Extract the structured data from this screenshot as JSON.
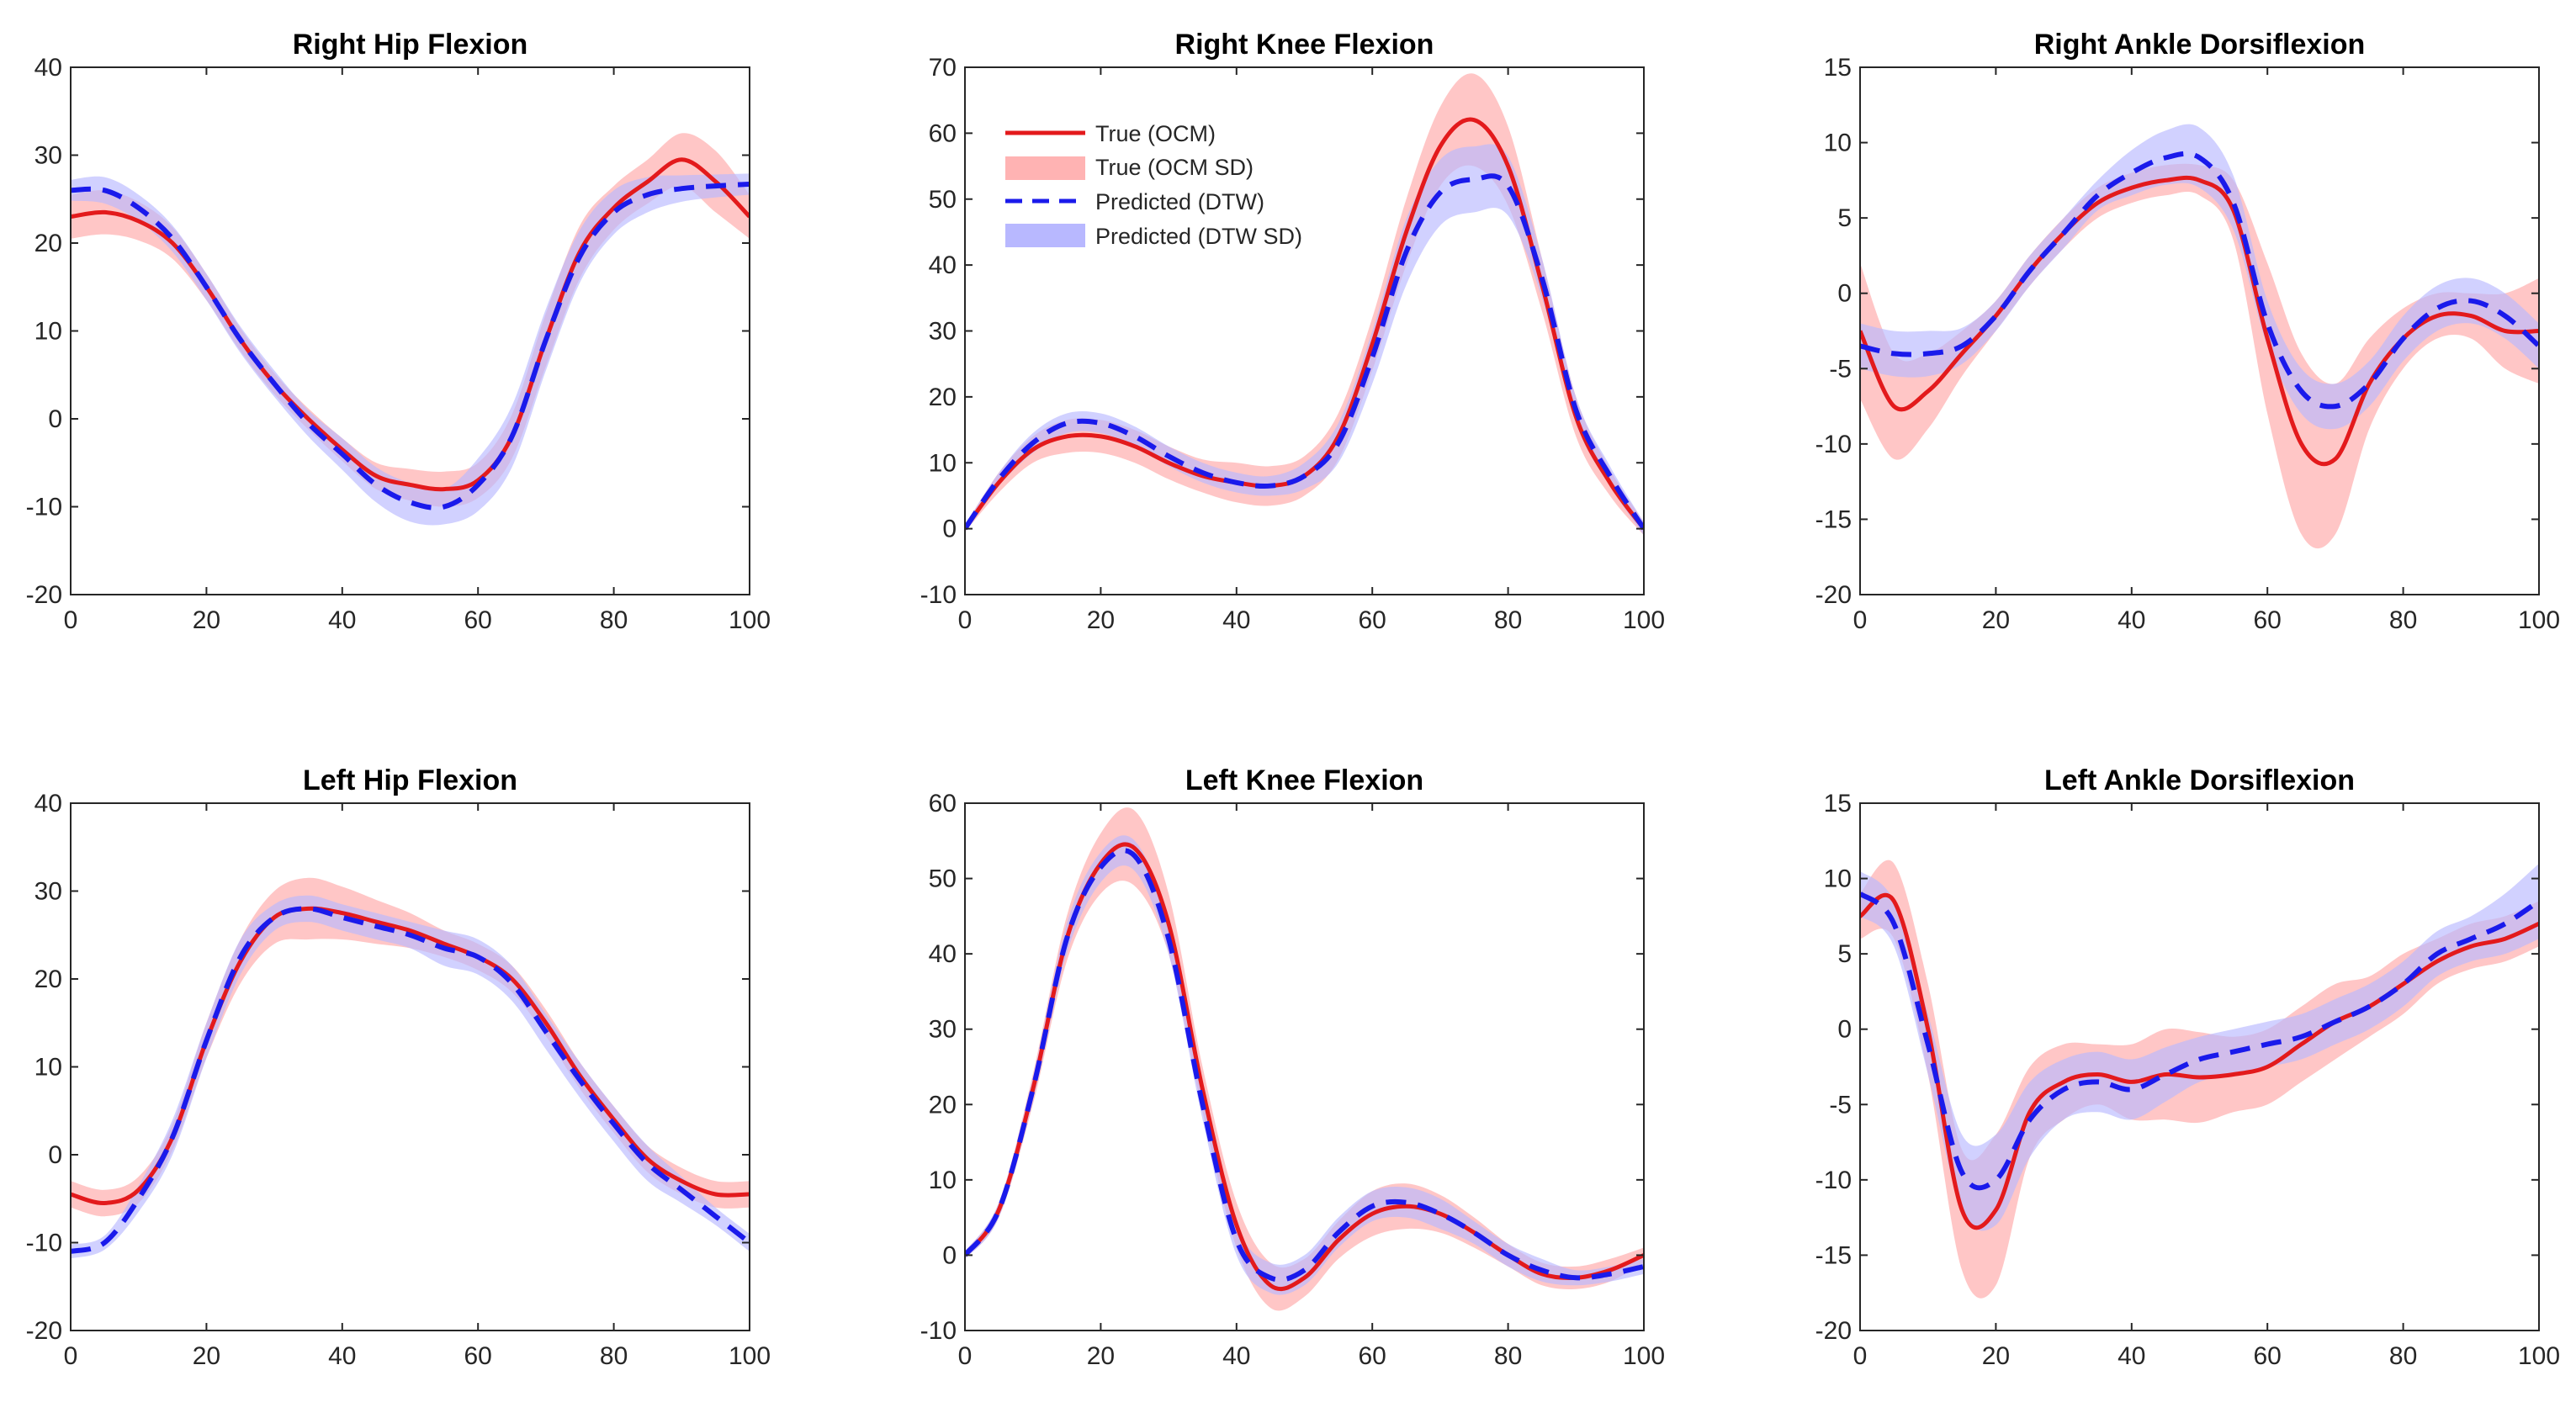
{
  "legend": {
    "entries": [
      {
        "label": "True (OCM)",
        "style": "solid-line",
        "color": "#e31a1c"
      },
      {
        "label": "True (OCM SD)",
        "style": "band",
        "color": "#ffb3b3"
      },
      {
        "label": "Predicted (DTW)",
        "style": "dashed-line",
        "color": "#1a1aeb"
      },
      {
        "label": "Predicted (DTW SD)",
        "style": "band",
        "color": "#b8b8ff"
      }
    ]
  },
  "chart_data": [
    {
      "type": "line",
      "title": "Right Hip Flexion",
      "xlabel": "",
      "ylabel": "",
      "xlim": [
        0,
        100
      ],
      "ylim": [
        -20,
        40
      ],
      "xticks": [
        0,
        20,
        40,
        60,
        80,
        100
      ],
      "yticks": [
        -20,
        -10,
        0,
        10,
        20,
        30,
        40
      ],
      "x": [
        0,
        5,
        10,
        15,
        20,
        25,
        30,
        35,
        40,
        45,
        50,
        55,
        60,
        65,
        70,
        75,
        80,
        85,
        90,
        95,
        100
      ],
      "series": [
        {
          "name": "True (OCM)",
          "values": [
            23,
            23.5,
            22.5,
            20,
            15,
            9,
            4,
            0,
            -3.5,
            -6.5,
            -7.5,
            -8,
            -7,
            -2,
            9,
            19,
            24,
            27,
            29.5,
            27,
            23
          ],
          "sd": [
            2.5,
            2.5,
            2.2,
            1.8,
            1.5,
            1.3,
            1.2,
            1.2,
            1.3,
            1.5,
            1.8,
            2.0,
            2.0,
            2.5,
            3,
            3,
            2.5,
            2.5,
            3,
            3.5,
            2.5
          ]
        },
        {
          "name": "Predicted (DTW)",
          "values": [
            26,
            26,
            24,
            20.5,
            15,
            9,
            4,
            -0.5,
            -4,
            -7.5,
            -9.5,
            -10,
            -7.5,
            -2,
            9,
            18.5,
            23.5,
            25.5,
            26.2,
            26.5,
            26.7
          ],
          "sd": [
            1.2,
            1.5,
            1.5,
            1.5,
            1.5,
            1.5,
            1.5,
            1.5,
            1.8,
            2.0,
            2.2,
            2.0,
            3,
            3.5,
            3.5,
            3,
            2.5,
            2,
            1.5,
            1.3,
            1.2
          ]
        }
      ]
    },
    {
      "type": "line",
      "title": "Right Knee Flexion",
      "xlabel": "",
      "ylabel": "",
      "xlim": [
        0,
        100
      ],
      "ylim": [
        -10,
        70
      ],
      "xticks": [
        0,
        20,
        40,
        60,
        80,
        100
      ],
      "yticks": [
        -10,
        0,
        10,
        20,
        30,
        40,
        50,
        60,
        70
      ],
      "x": [
        0,
        5,
        10,
        15,
        20,
        25,
        30,
        35,
        40,
        45,
        50,
        55,
        60,
        65,
        70,
        75,
        80,
        85,
        90,
        95,
        100
      ],
      "series": [
        {
          "name": "True (OCM)",
          "values": [
            0,
            7,
            12,
            14,
            14,
            12.5,
            10,
            8,
            7,
            6.5,
            8,
            14,
            28,
            45,
            58,
            62,
            55,
            37,
            17,
            7,
            0
          ],
          "sd": [
            0.5,
            1.5,
            2,
            2.5,
            2.5,
            2.5,
            2.5,
            2.5,
            3,
            3,
            3,
            3.5,
            4,
            5,
            6,
            7,
            6,
            4,
            3,
            2,
            1
          ]
        },
        {
          "name": "Predicted (DTW)",
          "values": [
            0,
            7.5,
            13,
            16,
            16,
            14,
            11,
            8.5,
            7,
            6.5,
            8,
            13,
            26,
            42,
            51,
            53,
            52,
            38,
            18,
            8,
            0
          ],
          "sd": [
            0.5,
            1,
            1.5,
            1.5,
            1.5,
            1.5,
            1.5,
            1.5,
            1.5,
            1.5,
            2,
            3,
            4,
            5,
            5,
            5,
            4.5,
            3,
            2,
            1.5,
            1
          ]
        }
      ]
    },
    {
      "type": "line",
      "title": "Right Ankle Dorsiflexion",
      "xlabel": "",
      "ylabel": "",
      "xlim": [
        0,
        100
      ],
      "ylim": [
        -20,
        15
      ],
      "xticks": [
        0,
        20,
        40,
        60,
        80,
        100
      ],
      "yticks": [
        -20,
        -15,
        -10,
        -5,
        0,
        5,
        10,
        15
      ],
      "x": [
        0,
        5,
        10,
        15,
        20,
        25,
        30,
        35,
        40,
        45,
        50,
        55,
        60,
        65,
        70,
        75,
        80,
        85,
        90,
        95,
        100
      ],
      "series": [
        {
          "name": "True (OCM)",
          "values": [
            -2.5,
            -7.5,
            -6.5,
            -4,
            -1.5,
            1.5,
            4,
            6,
            7,
            7.5,
            7.5,
            5.5,
            -3,
            -10,
            -11,
            -6,
            -3,
            -1.5,
            -1.5,
            -2.5,
            -2.5
          ],
          "sd": [
            4.5,
            3.5,
            2.5,
            1.5,
            1,
            1,
            1,
            1,
            1,
            1,
            1,
            2,
            5,
            6,
            5,
            3,
            2,
            1.5,
            1.5,
            2.5,
            3.5
          ]
        },
        {
          "name": "Predicted (DTW)",
          "values": [
            -3.5,
            -4,
            -4,
            -3.5,
            -1.5,
            1.5,
            4,
            6.5,
            8,
            9,
            9,
            6,
            -2,
            -6.5,
            -7.5,
            -6,
            -3,
            -1,
            -0.5,
            -1.5,
            -3.5
          ],
          "sd": [
            1.5,
            1.5,
            1.5,
            1.2,
            1,
            1,
            1,
            1,
            1.5,
            1.8,
            2,
            1.8,
            1.5,
            1.5,
            1.5,
            1.5,
            1.5,
            1.5,
            1.5,
            1.5,
            1.5
          ]
        }
      ]
    },
    {
      "type": "line",
      "title": "Left Hip Flexion",
      "xlabel": "",
      "ylabel": "",
      "xlim": [
        0,
        100
      ],
      "ylim": [
        -20,
        40
      ],
      "xticks": [
        0,
        20,
        40,
        60,
        80,
        100
      ],
      "yticks": [
        -20,
        -10,
        0,
        10,
        20,
        30,
        40
      ],
      "x": [
        0,
        5,
        10,
        15,
        20,
        25,
        30,
        35,
        40,
        45,
        50,
        55,
        60,
        65,
        70,
        75,
        80,
        85,
        90,
        95,
        100
      ],
      "series": [
        {
          "name": "True (OCM)",
          "values": [
            -4.5,
            -5.5,
            -4,
            2,
            13,
            22,
            27,
            28,
            27.5,
            26.5,
            25.5,
            24,
            22.5,
            20,
            15,
            9,
            4,
            -0.5,
            -3,
            -4.5,
            -4.5
          ],
          "sd": [
            1.5,
            1.5,
            1.5,
            1.5,
            2,
            2.5,
            3,
            3.5,
            3,
            2.5,
            2,
            1.5,
            1.5,
            1.5,
            1.5,
            1.5,
            1.5,
            1.5,
            1.5,
            1.5,
            1.5
          ]
        },
        {
          "name": "Predicted (DTW)",
          "values": [
            -11,
            -10,
            -5,
            2,
            13,
            22.5,
            27,
            28,
            27,
            26,
            25,
            23.5,
            22.5,
            19.5,
            14,
            8.5,
            3.5,
            -1,
            -4,
            -7,
            -10
          ],
          "sd": [
            0.8,
            0.8,
            1.5,
            2,
            2,
            2,
            1.5,
            1.5,
            1.5,
            1.5,
            1.5,
            2,
            2,
            2,
            2,
            2,
            2,
            2,
            1.5,
            1,
            1
          ]
        }
      ]
    },
    {
      "type": "line",
      "title": "Left Knee Flexion",
      "xlabel": "",
      "ylabel": "",
      "xlim": [
        0,
        100
      ],
      "ylim": [
        -10,
        60
      ],
      "xticks": [
        0,
        20,
        40,
        60,
        80,
        100
      ],
      "yticks": [
        -10,
        0,
        10,
        20,
        30,
        40,
        50,
        60
      ],
      "x": [
        0,
        5,
        10,
        15,
        20,
        25,
        30,
        35,
        40,
        45,
        50,
        55,
        60,
        65,
        70,
        75,
        80,
        85,
        90,
        95,
        100
      ],
      "series": [
        {
          "name": "True (OCM)",
          "values": [
            0,
            6,
            22,
            42,
            52,
            54,
            44,
            22,
            4,
            -4,
            -3,
            2,
            5.5,
            6.5,
            5.5,
            3,
            0,
            -2.5,
            -3,
            -2,
            0
          ],
          "sd": [
            0.5,
            1,
            2,
            3,
            4,
            5,
            4,
            3,
            3,
            3,
            2.5,
            2.5,
            3,
            3,
            2.5,
            2,
            1.5,
            1.5,
            1.5,
            1.5,
            1
          ]
        },
        {
          "name": "Predicted (DTW)",
          "values": [
            0,
            6,
            22,
            42,
            51.5,
            53,
            42,
            20,
            2,
            -3,
            -2,
            3,
            6.5,
            7,
            5.5,
            3,
            0,
            -2,
            -3,
            -2.5,
            -1.5
          ],
          "sd": [
            0.5,
            1,
            1.5,
            2,
            2,
            2,
            2,
            2,
            2,
            2,
            2,
            2,
            2,
            2,
            2,
            1.5,
            1.5,
            1.5,
            1,
            1,
            1
          ]
        }
      ]
    },
    {
      "type": "line",
      "title": "Left Ankle Dorsiflexion",
      "xlabel": "",
      "ylabel": "",
      "xlim": [
        0,
        100
      ],
      "ylim": [
        -20,
        15
      ],
      "xticks": [
        0,
        20,
        40,
        60,
        80,
        100
      ],
      "yticks": [
        -20,
        -15,
        -10,
        -5,
        0,
        5,
        10,
        15
      ],
      "x": [
        0,
        5,
        10,
        15,
        20,
        25,
        30,
        35,
        40,
        45,
        50,
        55,
        60,
        65,
        70,
        75,
        80,
        85,
        90,
        95,
        100
      ],
      "series": [
        {
          "name": "True (OCM)",
          "values": [
            7.5,
            8.5,
            0,
            -12,
            -12,
            -5.5,
            -3.5,
            -3,
            -3.5,
            -3,
            -3.2,
            -3,
            -2.5,
            -1,
            0.5,
            1.5,
            3,
            4.5,
            5.5,
            6,
            7
          ],
          "sd": [
            1.5,
            2.5,
            3,
            4,
            5,
            3,
            2.5,
            2,
            2.5,
            3,
            3,
            2.5,
            2.5,
            2.5,
            2.5,
            2,
            2,
            1.5,
            1.5,
            1.5,
            1.5
          ]
        },
        {
          "name": "Predicted (DTW)",
          "values": [
            9,
            7,
            -1,
            -9.5,
            -10,
            -6,
            -4,
            -3.5,
            -4,
            -3,
            -2,
            -1.5,
            -1,
            -0.5,
            0.5,
            1.5,
            3,
            5,
            6,
            7,
            8.5
          ],
          "sd": [
            1.5,
            1.5,
            2,
            2.5,
            3,
            2.5,
            2,
            2,
            2,
            1.8,
            1.5,
            1.5,
            1.5,
            1.5,
            1.5,
            1.5,
            1.5,
            1.5,
            1.5,
            2,
            2.5
          ]
        }
      ]
    }
  ]
}
